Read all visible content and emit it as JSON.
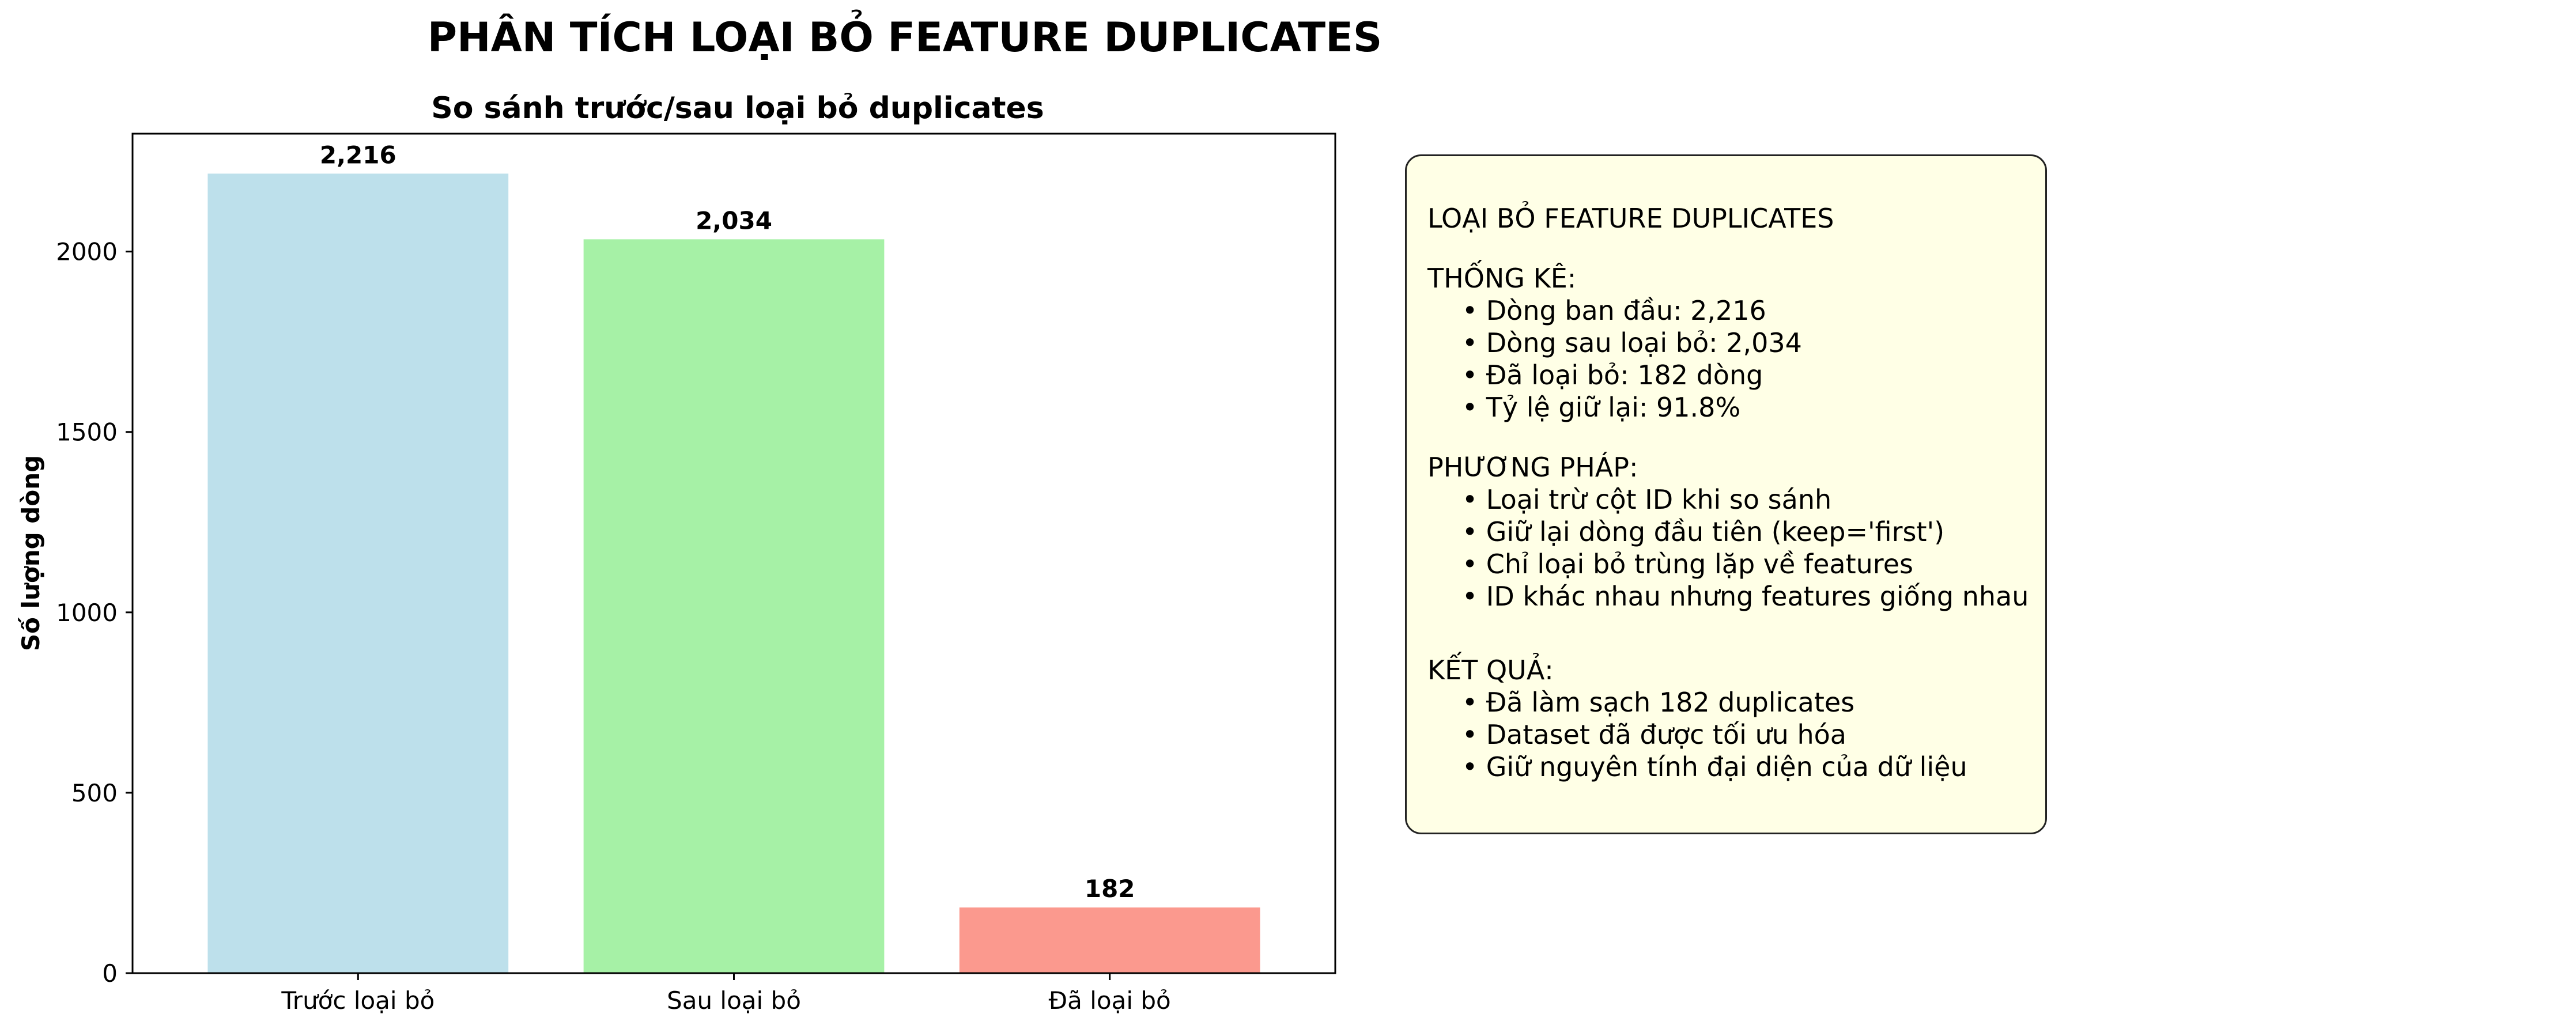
{
  "page_title": "PHÂN TÍCH LOẠI BỎ FEATURE DUPLICATES",
  "chart_data": {
    "type": "bar",
    "title": "So sánh trước/sau loại bỏ duplicates",
    "xlabel": "",
    "ylabel": "Số lượng dòng",
    "categories": [
      "Trước loại bỏ",
      "Sau loại bỏ",
      "Đã loại bỏ"
    ],
    "values": [
      2216,
      2034,
      182
    ],
    "data_labels": [
      "2,216",
      "2,034",
      "182"
    ],
    "colors": [
      "#add8e6",
      "#90ee90",
      "#fa8072"
    ],
    "ylim": [
      0,
      2326.8
    ],
    "yticks": [
      0,
      500,
      1000,
      1500,
      2000
    ],
    "grid": false,
    "legend": "none"
  },
  "info": {
    "title": "LOẠI BỎ FEATURE DUPLICATES",
    "sections": [
      {
        "heading": "THỐNG KÊ:",
        "items": [
          "• Dòng ban đầu: 2,216",
          "• Dòng sau loại bỏ: 2,034",
          "• Đã loại bỏ: 182 dòng",
          "• Tỷ lệ giữ lại: 91.8%"
        ]
      },
      {
        "heading": "PHƯƠNG PHÁP:",
        "items": [
          "• Loại trừ cột ID khi so sánh",
          "• Giữ lại dòng đầu tiên (keep='first')",
          "• Chỉ loại bỏ trùng lặp về features",
          "• ID khác nhau nhưng features giống nhau"
        ]
      },
      {
        "heading": "KẾT QUẢ:",
        "items": [
          "• Đã làm sạch 182 duplicates",
          "• Dataset đã được tối ưu hóa",
          "• Giữ nguyên tính đại diện của dữ liệu"
        ]
      }
    ]
  }
}
